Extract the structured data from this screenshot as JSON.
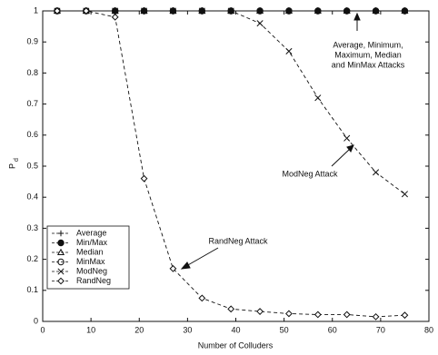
{
  "chart_data": {
    "type": "line",
    "xlabel": "Number of Colluders",
    "ylabel": "P",
    "ylabel_subscript": "d",
    "x": [
      3,
      9,
      15,
      21,
      27,
      33,
      39,
      45,
      51,
      57,
      63,
      69,
      75
    ],
    "xlim": [
      0,
      80
    ],
    "xticks": [
      0,
      10,
      20,
      30,
      40,
      50,
      60,
      70,
      80
    ],
    "ylim": [
      0,
      1
    ],
    "yticks": [
      0,
      0.1,
      0.2,
      0.3,
      0.4,
      0.5,
      0.6,
      0.7,
      0.8,
      0.9,
      1
    ],
    "legend_position": "lower left",
    "series": [
      {
        "name": "Average",
        "color": "#111111",
        "marker": "plus",
        "values": [
          1,
          1,
          1,
          1,
          1,
          1,
          1,
          1,
          1,
          1,
          1,
          1,
          1
        ]
      },
      {
        "name": "Min/Max",
        "color": "#111111",
        "marker": "filled-circle",
        "values": [
          1,
          1,
          1,
          1,
          1,
          1,
          1,
          1,
          1,
          1,
          1,
          1,
          1
        ]
      },
      {
        "name": "Median",
        "color": "#111111",
        "marker": "triangle",
        "values": [
          1,
          1,
          1,
          1,
          1,
          1,
          1,
          1,
          1,
          1,
          1,
          1,
          1
        ]
      },
      {
        "name": "MinMax",
        "color": "#111111",
        "marker": "circle",
        "values": [
          1,
          1,
          1,
          1,
          1,
          1,
          1,
          1,
          1,
          1,
          1,
          1,
          1
        ]
      },
      {
        "name": "ModNeg",
        "color": "#111111",
        "marker": "cross",
        "values": [
          1,
          1,
          1,
          1,
          1,
          1,
          1,
          0.96,
          0.87,
          0.72,
          0.59,
          0.48,
          0.41
        ]
      },
      {
        "name": "RandNeg",
        "color": "#111111",
        "marker": "diamond",
        "values": [
          1,
          1,
          0.98,
          0.46,
          0.17,
          0.075,
          0.04,
          0.032,
          0.025,
          0.022,
          0.022,
          0.015,
          0.02
        ]
      }
    ],
    "annotations": [
      {
        "lines": [
          "Average, Minimum,",
          "Maximum, Median",
          "and MinMax Attacks"
        ]
      },
      {
        "lines": [
          "ModNeg Attack"
        ]
      },
      {
        "lines": [
          "RandNeg Attack"
        ]
      }
    ]
  }
}
